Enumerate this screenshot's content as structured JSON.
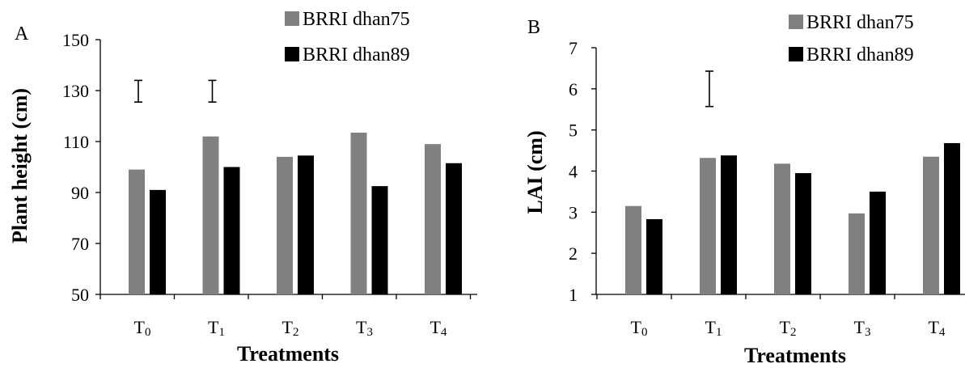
{
  "chart_data": [
    {
      "panel_label": "A",
      "type": "bar",
      "categories": [
        "T0",
        "T1",
        "T2",
        "T3",
        "T4"
      ],
      "category_labels": [
        {
          "main": "T",
          "sub": "0"
        },
        {
          "main": "T",
          "sub": "1"
        },
        {
          "main": "T",
          "sub": "2"
        },
        {
          "main": "T",
          "sub": "3"
        },
        {
          "main": "T",
          "sub": "4"
        }
      ],
      "series": [
        {
          "name": "BRRI dhan75",
          "color": "#808080",
          "values": [
            99,
            112,
            104,
            113.5,
            109
          ]
        },
        {
          "name": "BRRI dhan89",
          "color": "#000000",
          "values": [
            91,
            100,
            104.5,
            92.5,
            101.5
          ]
        }
      ],
      "error_bars": [
        {
          "category": "T0",
          "low": 125.5,
          "high": 134
        },
        {
          "category": "T1",
          "low": 125.5,
          "high": 134
        }
      ],
      "xlabel": "Treatments",
      "ylabel": "Plant height (cm)",
      "ylim": [
        50,
        150
      ],
      "yticks": [
        50,
        70,
        90,
        110,
        130,
        150
      ],
      "grid": false,
      "legend_position": "top-right"
    },
    {
      "panel_label": "B",
      "type": "bar",
      "categories": [
        "T0",
        "T1",
        "T2",
        "T3",
        "T4"
      ],
      "category_labels": [
        {
          "main": "T",
          "sub": "0"
        },
        {
          "main": "T",
          "sub": "1"
        },
        {
          "main": "T",
          "sub": "2"
        },
        {
          "main": "T",
          "sub": "3"
        },
        {
          "main": "T",
          "sub": "4"
        }
      ],
      "series": [
        {
          "name": "BRRI dhan75",
          "color": "#808080",
          "values": [
            3.15,
            4.32,
            4.18,
            2.97,
            4.35
          ]
        },
        {
          "name": "BRRI dhan89",
          "color": "#000000",
          "values": [
            2.83,
            4.38,
            3.95,
            3.5,
            4.68
          ]
        }
      ],
      "error_bars": [
        {
          "category": "T1",
          "low": 5.57,
          "high": 6.43
        }
      ],
      "xlabel": "Treatments",
      "ylabel": "LAI (cm)",
      "ylim": [
        1,
        7
      ],
      "yticks": [
        1,
        2,
        3,
        4,
        5,
        6,
        7
      ],
      "grid": false,
      "legend_position": "top-right"
    }
  ]
}
